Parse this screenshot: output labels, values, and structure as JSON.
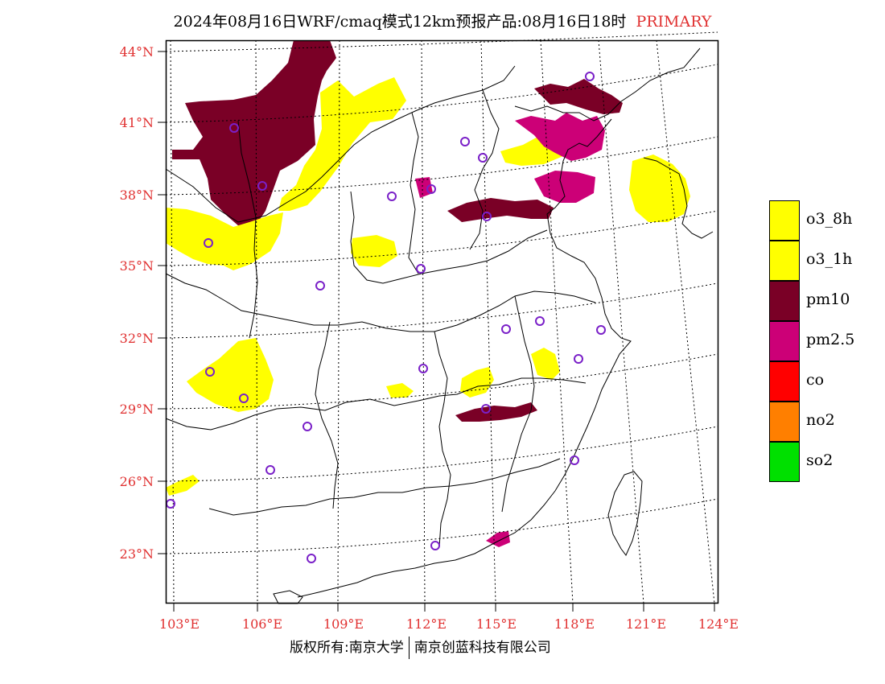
{
  "header": {
    "title": "2024年08月16日WRF/cmaq模式12km预报产品:08月16日18时",
    "pollutant_tag": "PRIMARY"
  },
  "map": {
    "lat_labels": [
      "44°N",
      "41°N",
      "38°N",
      "35°N",
      "32°N",
      "29°N",
      "26°N",
      "23°N"
    ],
    "lon_labels": [
      "103°E",
      "106°E",
      "109°E",
      "112°E",
      "115°E",
      "118°E",
      "121°E",
      "124°E"
    ],
    "label_color": "#e03030"
  },
  "legend": {
    "items": [
      {
        "label": "o3_8h",
        "color": "#ffff00"
      },
      {
        "label": "o3_1h",
        "color": "#ffff00"
      },
      {
        "label": "pm10",
        "color": "#7a0026"
      },
      {
        "label": "pm2.5",
        "color": "#cc0077"
      },
      {
        "label": "co",
        "color": "#ff0000"
      },
      {
        "label": "no2",
        "color": "#ff7f00"
      },
      {
        "label": "so2",
        "color": "#00e000"
      }
    ]
  },
  "footer": {
    "copyright": "版权所有:南京大学",
    "company": "南京创蓝科技有限公司"
  }
}
